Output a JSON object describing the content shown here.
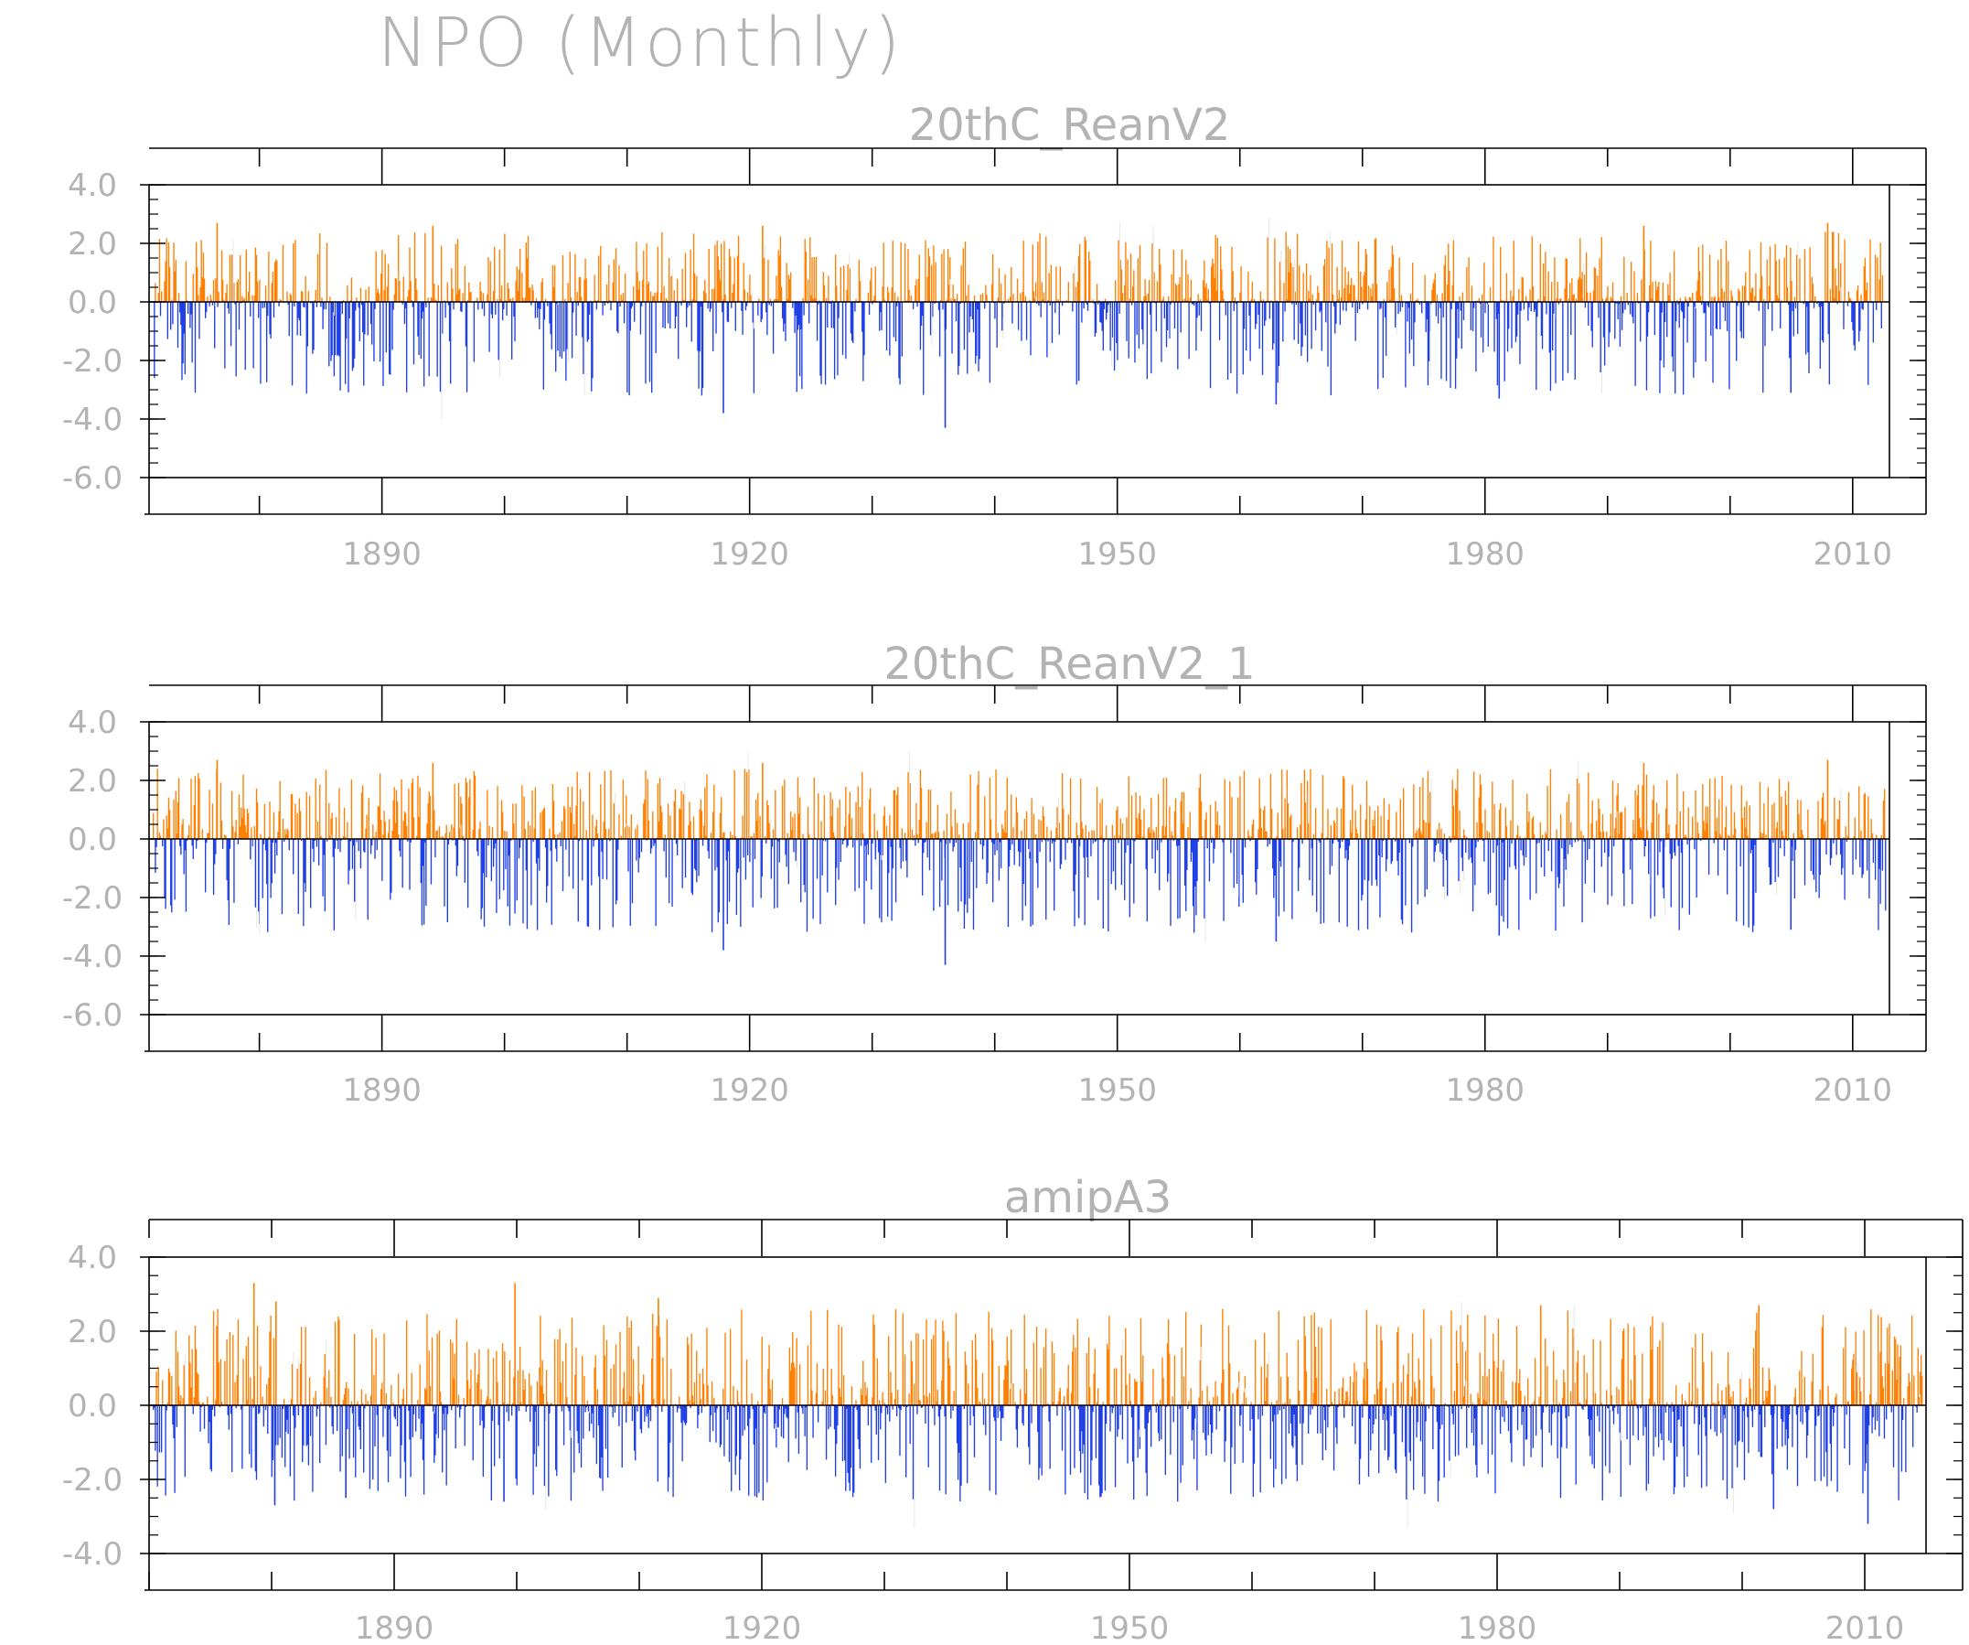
{
  "title": "NPO (Monthly)",
  "colors": {
    "positive": "#ff7f00",
    "negative": "#1f3fe6",
    "shadow": "#e6e6e6",
    "text": "#b3b3b3",
    "axis": "#000000"
  },
  "chart_data": [
    {
      "type": "bar",
      "title": "20thC_ReanV2",
      "x_range": [
        1871.0,
        2013.0
      ],
      "ylim": [
        -6.0,
        4.0
      ],
      "yticks": [
        -6.0,
        -4.0,
        -2.0,
        0.0,
        2.0,
        4.0
      ],
      "ytick_labels": [
        "-6.0",
        "-4.0",
        "-2.0",
        "0.0",
        "2.0",
        "4.0"
      ],
      "xticks": [
        1890,
        1920,
        1950,
        1980,
        2010
      ],
      "xtick_labels": [
        "1890",
        "1920",
        "1950",
        "1980",
        "2010"
      ],
      "grid": false,
      "notable_values": [
        {
          "x": 1876.5,
          "y": 2.7
        },
        {
          "x": 1894.1,
          "y": 2.6
        },
        {
          "x": 1921.0,
          "y": 2.6
        },
        {
          "x": 1917.8,
          "y": -3.8
        },
        {
          "x": 1935.9,
          "y": -4.3
        },
        {
          "x": 1946.8,
          "y": -2.7
        },
        {
          "x": 1962.9,
          "y": -3.5
        },
        {
          "x": 1981.1,
          "y": -3.3
        },
        {
          "x": 1992.9,
          "y": 2.6
        },
        {
          "x": 2007.9,
          "y": 2.7
        },
        {
          "x": 2004.9,
          "y": -3.1
        }
      ]
    },
    {
      "type": "bar",
      "title": "20thC_ReanV2_1",
      "x_range": [
        1871.0,
        2013.0
      ],
      "ylim": [
        -6.0,
        4.0
      ],
      "yticks": [
        -6.0,
        -4.0,
        -2.0,
        0.0,
        2.0,
        4.0
      ],
      "ytick_labels": [
        "-6.0",
        "-4.0",
        "-2.0",
        "0.0",
        "2.0",
        "4.0"
      ],
      "xticks": [
        1890,
        1920,
        1950,
        1980,
        2010
      ],
      "xtick_labels": [
        "1890",
        "1920",
        "1950",
        "1980",
        "2010"
      ],
      "grid": false,
      "notable_values": [
        {
          "x": 1876.5,
          "y": 2.7
        },
        {
          "x": 1894.1,
          "y": 2.6
        },
        {
          "x": 1921.0,
          "y": 2.6
        },
        {
          "x": 1917.8,
          "y": -3.8
        },
        {
          "x": 1935.9,
          "y": -4.3
        },
        {
          "x": 1946.8,
          "y": -2.7
        },
        {
          "x": 1962.9,
          "y": -3.5
        },
        {
          "x": 1981.1,
          "y": -3.3
        },
        {
          "x": 1992.9,
          "y": 2.6
        },
        {
          "x": 2007.9,
          "y": 2.7
        },
        {
          "x": 2004.9,
          "y": -3.1
        }
      ]
    },
    {
      "type": "bar",
      "title": "amipA3",
      "x_range": [
        1870.0,
        2015.0
      ],
      "ylim": [
        -4.0,
        4.0
      ],
      "yticks": [
        -4.0,
        -2.0,
        0.0,
        2.0,
        4.0
      ],
      "ytick_labels": [
        "-4.0",
        "-2.0",
        "0.0",
        "2.0",
        "4.0"
      ],
      "xticks": [
        1890,
        1920,
        1950,
        1980,
        2010
      ],
      "xtick_labels": [
        "1890",
        "1920",
        "1950",
        "1980",
        "2010"
      ],
      "grid": false,
      "notable_values": [
        {
          "x": 1878.5,
          "y": 3.3
        },
        {
          "x": 1880.3,
          "y": 2.8
        },
        {
          "x": 1899.8,
          "y": 3.3
        },
        {
          "x": 1911.5,
          "y": 2.9
        },
        {
          "x": 1880.2,
          "y": -2.7
        },
        {
          "x": 1886.0,
          "y": -2.5
        },
        {
          "x": 1898.9,
          "y": -2.6
        },
        {
          "x": 2002.5,
          "y": -2.8
        },
        {
          "x": 2010.2,
          "y": -3.2
        },
        {
          "x": 2001.3,
          "y": 2.7
        },
        {
          "x": 1983.5,
          "y": 2.7
        }
      ]
    }
  ]
}
